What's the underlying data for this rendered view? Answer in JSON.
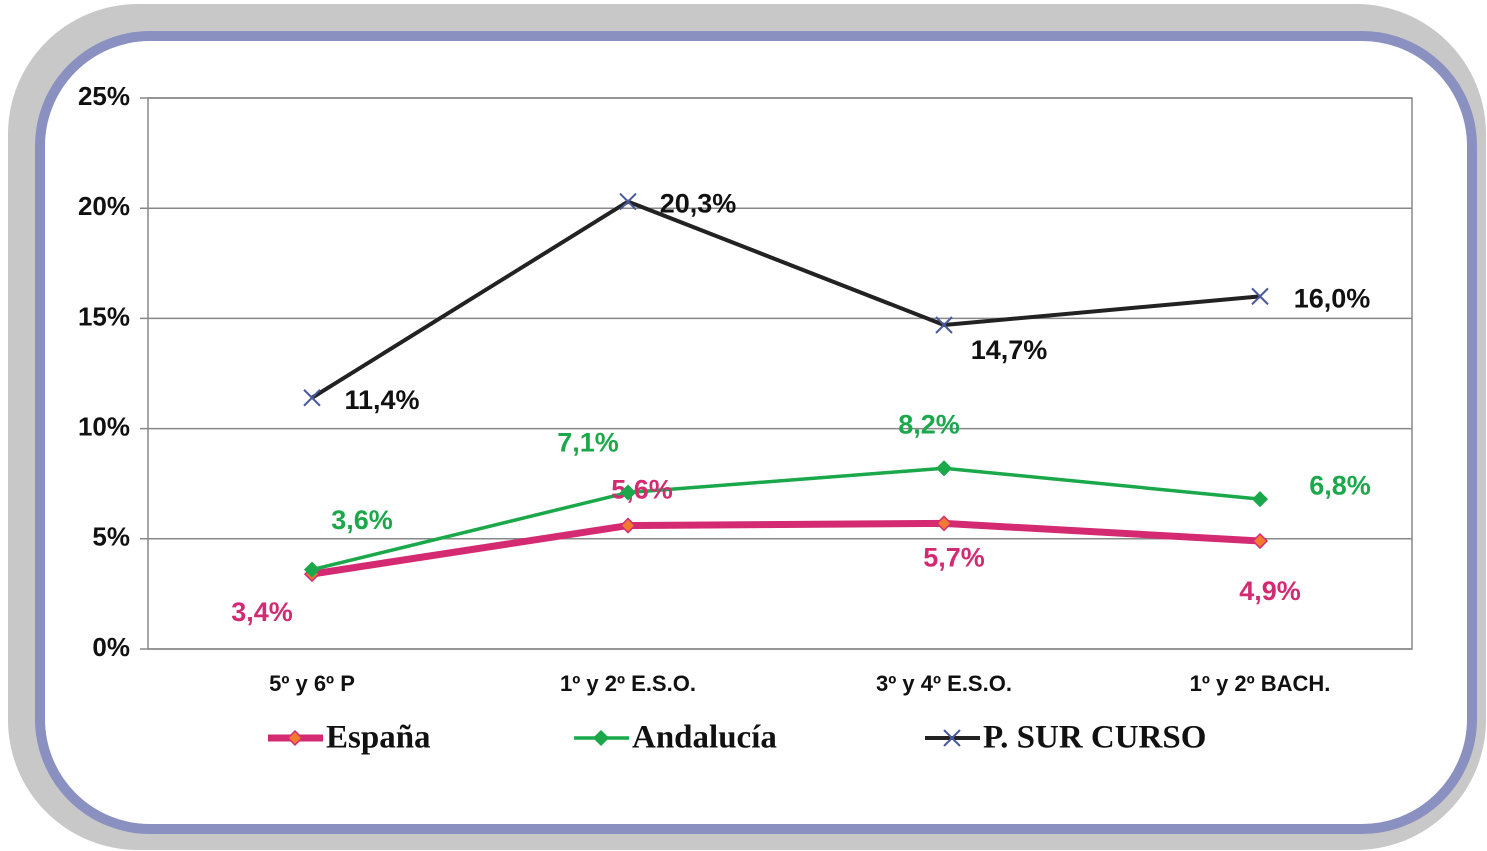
{
  "chart_data": {
    "type": "line",
    "categories": [
      "5º y 6º P",
      "1º y 2º E.S.O.",
      "3º y 4º E.S.O.",
      "1º y 2º BACH."
    ],
    "series": [
      {
        "name": "España",
        "color": "#d42a72",
        "marker": "diamond",
        "marker_color": "#f07a30",
        "values": [
          3.4,
          5.6,
          5.7,
          4.9
        ],
        "value_labels": [
          "3,4%",
          "5,6%",
          "5,7%",
          "4,9%"
        ]
      },
      {
        "name": "Andalucía",
        "color": "#1aa84a",
        "marker": "diamond",
        "marker_color": "#1aa84a",
        "values": [
          3.6,
          7.1,
          8.2,
          6.8
        ],
        "value_labels": [
          "3,6%",
          "7,1%",
          "8,2%",
          "6,8%"
        ]
      },
      {
        "name": "P. SUR CURSO",
        "color": "#222222",
        "marker": "x",
        "marker_color": "#4a5a9a",
        "values": [
          11.4,
          20.3,
          14.7,
          16.0
        ],
        "value_labels": [
          "11,4%",
          "20,3%",
          "14,7%",
          "16,0%"
        ]
      }
    ],
    "ylim": [
      0,
      25
    ],
    "yticks": [
      {
        "value": 0,
        "label": "0%"
      },
      {
        "value": 5,
        "label": "5%"
      },
      {
        "value": 10,
        "label": "10%"
      },
      {
        "value": 15,
        "label": "15%"
      },
      {
        "value": 20,
        "label": "20%"
      },
      {
        "value": 25,
        "label": "25%"
      }
    ],
    "grid": true,
    "legend": "bottom"
  }
}
